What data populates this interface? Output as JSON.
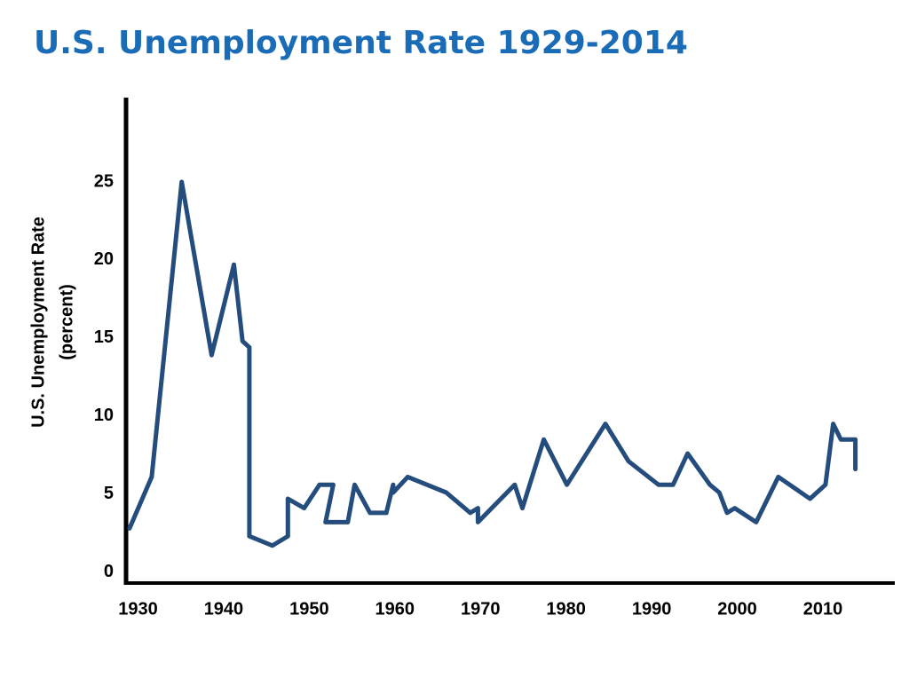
{
  "chart_data": {
    "type": "line",
    "title": "U.S. Unemployment Rate 1929-2014",
    "y_label": [
      "U.S. Unemployment  Rate",
      "(percent)"
    ],
    "x": [
      1929,
      1931.6,
      1935.1,
      1938.6,
      1941.2,
      1942.2,
      1943,
      1943,
      1945.7,
      1947.5,
      1947.5,
      1949.4,
      1951.2,
      1952.8,
      1951.9,
      1954.5,
      1955.3,
      1957.1,
      1959,
      1959.8,
      1959.8,
      1961.5,
      1966,
      1968.8,
      1969.7,
      1969.7,
      1974,
      1974.9,
      1977.4,
      1980.1,
      1984.6,
      1987.3,
      1990.8,
      1992.5,
      1994.2,
      1996.8,
      1997.9,
      1998.8,
      1999.7,
      2002.2,
      2004.8,
      2008.5,
      2010.3,
      2011.2,
      2012.1,
      2013.8,
      2013.8
    ],
    "values": [
      2.8,
      6.1,
      25,
      13.9,
      19.7,
      14.8,
      14.4,
      2.3,
      1.7,
      2.3,
      4.7,
      4.1,
      5.6,
      5.6,
      3.2,
      3.2,
      5.6,
      3.8,
      3.8,
      5.6,
      5.1,
      6.1,
      5.1,
      3.8,
      4.1,
      3.2,
      5.6,
      4.1,
      8.5,
      5.6,
      9.5,
      7.1,
      5.6,
      5.6,
      7.6,
      5.6,
      5.1,
      3.8,
      4.1,
      3.2,
      6.1,
      4.7,
      5.6,
      9.5,
      8.5,
      8.5,
      6.6
    ],
    "color": "#244c7c",
    "xlim": [
      1928.6,
      2018.4
    ],
    "xticks": [
      1930,
      1940,
      1950,
      1960,
      1970,
      1980,
      1990,
      2000,
      2010
    ],
    "ylim": [
      -0.7,
      30.4
    ],
    "yticks": [
      0,
      5,
      10,
      15,
      20,
      25
    ],
    "grid": false
  }
}
